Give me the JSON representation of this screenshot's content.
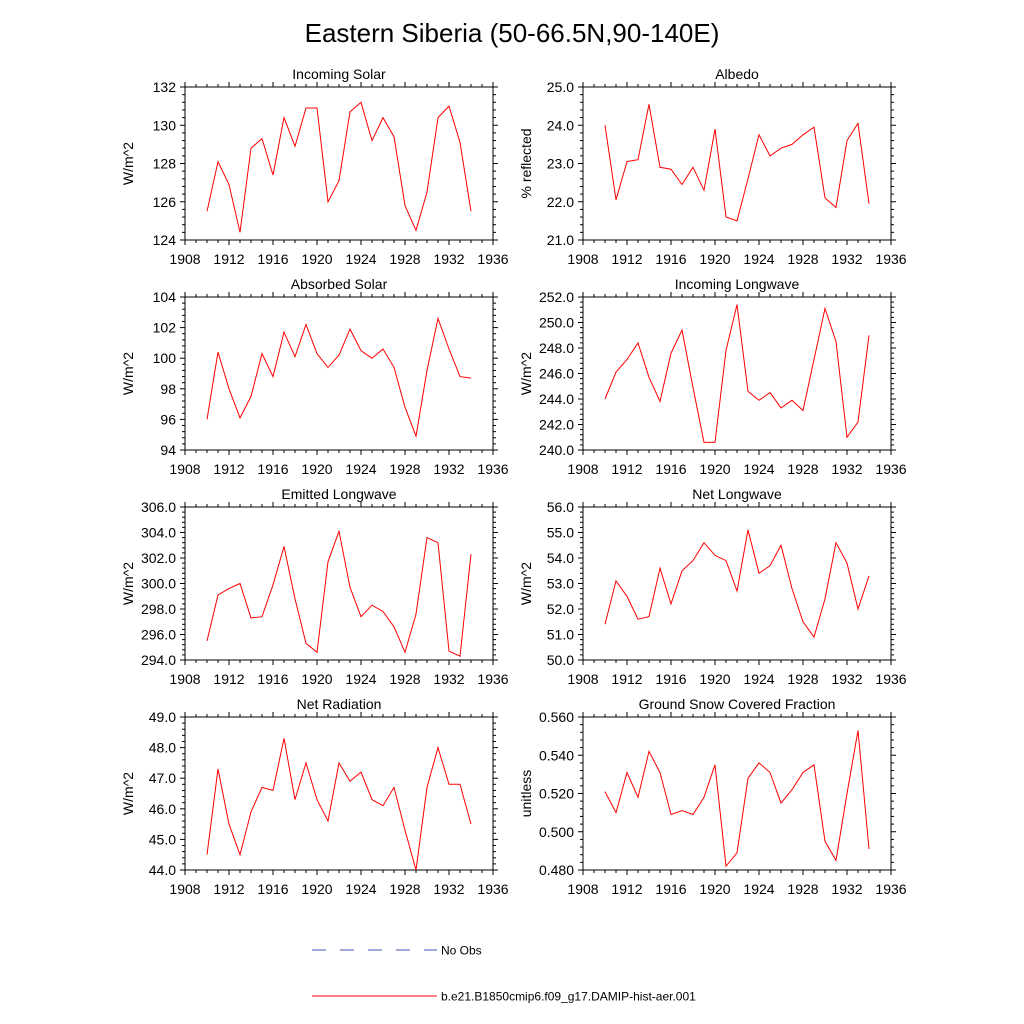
{
  "title": "Eastern Siberia (50-66.5N,90-140E)",
  "legend": [
    {
      "label": "No Obs",
      "style": "dashed",
      "color": "#4455bb"
    },
    {
      "label": "b.e21.B1850cmip6.f09_g17.DAMIP-hist-aer.001",
      "style": "solid",
      "color": "#ff0000"
    }
  ],
  "chart_data": [
    {
      "type": "line",
      "title": "Incoming Solar",
      "xlabel": "",
      "ylabel": "W/m^2",
      "xlim": [
        1908,
        1936
      ],
      "ylim": [
        124,
        132
      ],
      "xticks": [
        1908,
        1912,
        1916,
        1920,
        1924,
        1928,
        1932,
        1936
      ],
      "yticks": [
        "124",
        "126",
        "128",
        "130",
        "132"
      ],
      "series": [
        {
          "color": "#ff0000",
          "x": [
            1910,
            1911,
            1912,
            1913,
            1914,
            1915,
            1916,
            1917,
            1918,
            1919,
            1920,
            1921,
            1922,
            1923,
            1924,
            1925,
            1926,
            1927,
            1928,
            1929,
            1930,
            1931,
            1932,
            1933,
            1934
          ],
          "values": [
            125.5,
            128.1,
            126.9,
            124.4,
            128.8,
            129.3,
            127.4,
            130.4,
            128.9,
            130.9,
            130.9,
            126.0,
            127.1,
            130.7,
            131.2,
            129.2,
            130.4,
            129.4,
            125.8,
            124.5,
            126.5,
            130.4,
            131.0,
            129.1,
            125.5
          ]
        }
      ]
    },
    {
      "type": "line",
      "title": "Albedo",
      "xlabel": "",
      "ylabel": "% reflected",
      "xlim": [
        1908,
        1936
      ],
      "ylim": [
        21.0,
        25.0
      ],
      "xticks": [
        1908,
        1912,
        1916,
        1920,
        1924,
        1928,
        1932,
        1936
      ],
      "yticks": [
        "21.0",
        "22.0",
        "23.0",
        "24.0",
        "25.0"
      ],
      "series": [
        {
          "color": "#ff0000",
          "x": [
            1910,
            1911,
            1912,
            1913,
            1914,
            1915,
            1916,
            1917,
            1918,
            1919,
            1920,
            1921,
            1922,
            1923,
            1924,
            1925,
            1926,
            1927,
            1928,
            1929,
            1930,
            1931,
            1932,
            1933,
            1934
          ],
          "values": [
            24.0,
            22.05,
            23.05,
            23.1,
            24.55,
            22.9,
            22.85,
            22.45,
            22.9,
            22.3,
            23.9,
            21.6,
            21.5,
            22.6,
            23.75,
            23.2,
            23.4,
            23.5,
            23.75,
            23.95,
            22.1,
            21.85,
            23.6,
            24.05,
            21.95
          ]
        }
      ]
    },
    {
      "type": "line",
      "title": "Absorbed Solar",
      "xlabel": "",
      "ylabel": "W/m^2",
      "xlim": [
        1908,
        1936
      ],
      "ylim": [
        94,
        104
      ],
      "xticks": [
        1908,
        1912,
        1916,
        1920,
        1924,
        1928,
        1932,
        1936
      ],
      "yticks": [
        "94",
        "96",
        "98",
        "100",
        "102",
        "104"
      ],
      "series": [
        {
          "color": "#ff0000",
          "x": [
            1910,
            1911,
            1912,
            1913,
            1914,
            1915,
            1916,
            1917,
            1918,
            1919,
            1920,
            1921,
            1922,
            1923,
            1924,
            1925,
            1926,
            1927,
            1928,
            1929,
            1930,
            1931,
            1932,
            1933,
            1934
          ],
          "values": [
            96.0,
            100.4,
            98.0,
            96.1,
            97.5,
            100.3,
            98.8,
            101.7,
            100.1,
            102.2,
            100.3,
            99.4,
            100.2,
            101.9,
            100.5,
            100.0,
            100.6,
            99.4,
            96.8,
            94.9,
            99.2,
            102.6,
            100.6,
            98.8,
            98.7
          ]
        }
      ]
    },
    {
      "type": "line",
      "title": "Incoming Longwave",
      "xlabel": "",
      "ylabel": "W/m^2",
      "xlim": [
        1908,
        1936
      ],
      "ylim": [
        240.0,
        252.0
      ],
      "xticks": [
        1908,
        1912,
        1916,
        1920,
        1924,
        1928,
        1932,
        1936
      ],
      "yticks": [
        "240.0",
        "242.0",
        "244.0",
        "246.0",
        "248.0",
        "250.0",
        "252.0"
      ],
      "series": [
        {
          "color": "#ff0000",
          "x": [
            1910,
            1911,
            1912,
            1913,
            1914,
            1915,
            1916,
            1917,
            1918,
            1919,
            1920,
            1921,
            1922,
            1923,
            1924,
            1925,
            1926,
            1927,
            1928,
            1929,
            1930,
            1931,
            1932,
            1933,
            1934
          ],
          "values": [
            244.0,
            246.1,
            247.1,
            248.4,
            245.7,
            243.8,
            247.6,
            249.4,
            244.9,
            240.6,
            240.6,
            247.8,
            251.4,
            244.6,
            243.9,
            244.5,
            243.3,
            243.9,
            243.1,
            247.1,
            251.1,
            248.5,
            241.0,
            242.2,
            249.0
          ]
        }
      ]
    },
    {
      "type": "line",
      "title": "Emitted Longwave",
      "xlabel": "",
      "ylabel": "W/m^2",
      "xlim": [
        1908,
        1936
      ],
      "ylim": [
        294.0,
        306.0
      ],
      "xticks": [
        1908,
        1912,
        1916,
        1920,
        1924,
        1928,
        1932,
        1936
      ],
      "yticks": [
        "294.0",
        "296.0",
        "298.0",
        "300.0",
        "302.0",
        "304.0",
        "306.0"
      ],
      "series": [
        {
          "color": "#ff0000",
          "x": [
            1910,
            1911,
            1912,
            1913,
            1914,
            1915,
            1916,
            1917,
            1918,
            1919,
            1920,
            1921,
            1922,
            1923,
            1924,
            1925,
            1926,
            1927,
            1928,
            1929,
            1930,
            1931,
            1932,
            1933,
            1934
          ],
          "values": [
            295.5,
            299.1,
            299.6,
            300.0,
            297.3,
            297.4,
            299.9,
            302.9,
            298.8,
            295.3,
            294.6,
            301.7,
            304.1,
            299.7,
            297.4,
            298.3,
            297.8,
            296.6,
            294.6,
            297.6,
            303.6,
            303.2,
            294.7,
            294.3,
            302.3
          ]
        }
      ]
    },
    {
      "type": "line",
      "title": "Net Longwave",
      "xlabel": "",
      "ylabel": "W/m^2",
      "xlim": [
        1908,
        1936
      ],
      "ylim": [
        50.0,
        56.0
      ],
      "xticks": [
        1908,
        1912,
        1916,
        1920,
        1924,
        1928,
        1932,
        1936
      ],
      "yticks": [
        "50.0",
        "51.0",
        "52.0",
        "53.0",
        "54.0",
        "55.0",
        "56.0"
      ],
      "series": [
        {
          "color": "#ff0000",
          "x": [
            1910,
            1911,
            1912,
            1913,
            1914,
            1915,
            1916,
            1917,
            1918,
            1919,
            1920,
            1921,
            1922,
            1923,
            1924,
            1925,
            1926,
            1927,
            1928,
            1929,
            1930,
            1931,
            1932,
            1933,
            1934
          ],
          "values": [
            51.4,
            53.1,
            52.5,
            51.6,
            51.7,
            53.6,
            52.2,
            53.5,
            53.9,
            54.6,
            54.1,
            53.9,
            52.7,
            55.1,
            53.4,
            53.7,
            54.5,
            52.8,
            51.5,
            50.9,
            52.4,
            54.6,
            53.8,
            52.0,
            53.3
          ]
        }
      ]
    },
    {
      "type": "line",
      "title": "Net Radiation",
      "xlabel": "",
      "ylabel": "W/m^2",
      "xlim": [
        1908,
        1936
      ],
      "ylim": [
        44.0,
        49.0
      ],
      "xticks": [
        1908,
        1912,
        1916,
        1920,
        1924,
        1928,
        1932,
        1936
      ],
      "yticks": [
        "44.0",
        "45.0",
        "46.0",
        "47.0",
        "48.0",
        "49.0"
      ],
      "series": [
        {
          "color": "#ff0000",
          "x": [
            1910,
            1911,
            1912,
            1913,
            1914,
            1915,
            1916,
            1917,
            1918,
            1919,
            1920,
            1921,
            1922,
            1923,
            1924,
            1925,
            1926,
            1927,
            1928,
            1929,
            1930,
            1931,
            1932,
            1933,
            1934
          ],
          "values": [
            44.5,
            47.3,
            45.5,
            44.5,
            45.9,
            46.7,
            46.6,
            48.3,
            46.3,
            47.5,
            46.3,
            45.6,
            47.5,
            46.9,
            47.2,
            46.3,
            46.1,
            46.7,
            45.3,
            44.0,
            46.7,
            48.0,
            46.8,
            46.8,
            45.5
          ]
        }
      ]
    },
    {
      "type": "line",
      "title": "Ground Snow Covered Fraction",
      "xlabel": "",
      "ylabel": "unitless",
      "xlim": [
        1908,
        1936
      ],
      "ylim": [
        0.48,
        0.56
      ],
      "xticks": [
        1908,
        1912,
        1916,
        1920,
        1924,
        1928,
        1932,
        1936
      ],
      "yticks": [
        "0.480",
        "0.500",
        "0.520",
        "0.540",
        "0.560"
      ],
      "series": [
        {
          "color": "#ff0000",
          "x": [
            1910,
            1911,
            1912,
            1913,
            1914,
            1915,
            1916,
            1917,
            1918,
            1919,
            1920,
            1921,
            1922,
            1923,
            1924,
            1925,
            1926,
            1927,
            1928,
            1929,
            1930,
            1931,
            1932,
            1933,
            1934
          ],
          "values": [
            0.521,
            0.51,
            0.531,
            0.518,
            0.542,
            0.531,
            0.509,
            0.511,
            0.509,
            0.518,
            0.535,
            0.482,
            0.489,
            0.528,
            0.536,
            0.531,
            0.515,
            0.522,
            0.531,
            0.535,
            0.495,
            0.485,
            0.52,
            0.553,
            0.491
          ]
        }
      ]
    }
  ]
}
